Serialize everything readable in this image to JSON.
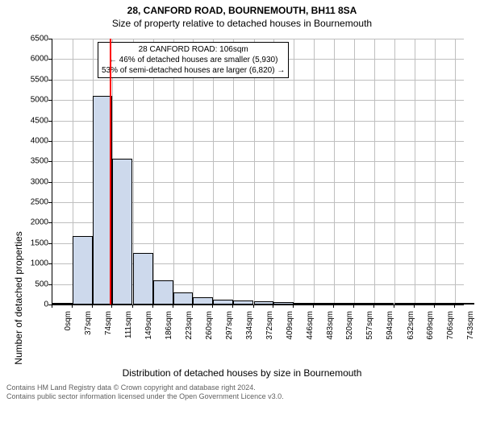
{
  "title_line1": "28, CANFORD ROAD, BOURNEMOUTH, BH11 8SA",
  "title_line2": "Size of property relative to detached houses in Bournemouth",
  "y_axis_label": "Number of detached properties",
  "x_axis_label": "Distribution of detached houses by size in Bournemouth",
  "chart": {
    "type": "histogram",
    "xlim": [
      0,
      760
    ],
    "ylim": [
      0,
      6500
    ],
    "ytick_step": 500,
    "background_color": "#ffffff",
    "grid_color": "#bfbfbf",
    "bar_color": "#cdd9ec",
    "bar_border": "#000000",
    "marker_color": "#ff0000",
    "marker_x": 106,
    "x_ticks": [
      0,
      37,
      74,
      111,
      149,
      186,
      223,
      260,
      297,
      334,
      372,
      409,
      446,
      483,
      520,
      557,
      594,
      632,
      669,
      706,
      743
    ],
    "x_tick_labels": [
      "0sqm",
      "37sqm",
      "74sqm",
      "111sqm",
      "149sqm",
      "186sqm",
      "223sqm",
      "260sqm",
      "297sqm",
      "334sqm",
      "372sqm",
      "409sqm",
      "446sqm",
      "483sqm",
      "520sqm",
      "557sqm",
      "594sqm",
      "632sqm",
      "669sqm",
      "706sqm",
      "743sqm"
    ],
    "bars": [
      {
        "x": 0,
        "value": 30
      },
      {
        "x": 37,
        "value": 1680
      },
      {
        "x": 74,
        "value": 5100
      },
      {
        "x": 111,
        "value": 3560
      },
      {
        "x": 149,
        "value": 1260
      },
      {
        "x": 186,
        "value": 590
      },
      {
        "x": 223,
        "value": 300
      },
      {
        "x": 260,
        "value": 180
      },
      {
        "x": 297,
        "value": 120
      },
      {
        "x": 334,
        "value": 90
      },
      {
        "x": 372,
        "value": 70
      },
      {
        "x": 409,
        "value": 55
      },
      {
        "x": 446,
        "value": 40
      },
      {
        "x": 483,
        "value": 20
      },
      {
        "x": 520,
        "value": 12
      },
      {
        "x": 557,
        "value": 10
      },
      {
        "x": 594,
        "value": 8
      },
      {
        "x": 632,
        "value": 6
      },
      {
        "x": 669,
        "value": 5
      },
      {
        "x": 706,
        "value": 4
      },
      {
        "x": 743,
        "value": 3
      }
    ]
  },
  "annotation": {
    "line1": "28 CANFORD ROAD: 106sqm",
    "line2": "← 46% of detached houses are smaller (5,930)",
    "line3": "53% of semi-detached houses are larger (6,820) →"
  },
  "footer_line1": "Contains HM Land Registry data © Crown copyright and database right 2024.",
  "footer_line2": "Contains public sector information licensed under the Open Government Licence v3.0."
}
